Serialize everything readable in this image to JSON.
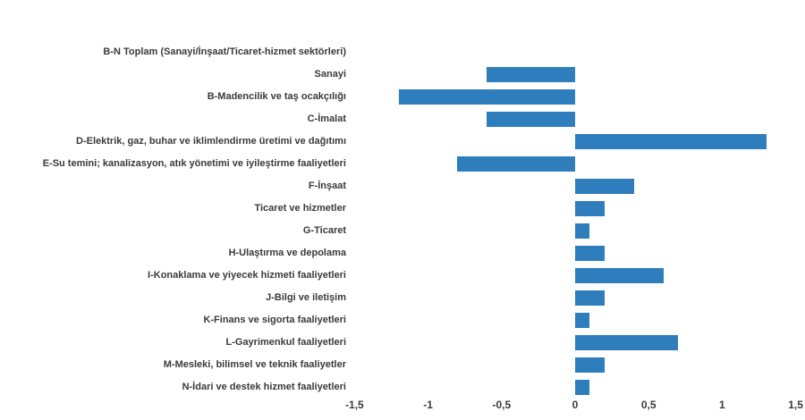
{
  "chart_data": {
    "type": "bar",
    "orientation": "horizontal",
    "title": "",
    "xlabel": "",
    "ylabel": "",
    "grid": false,
    "legend": null,
    "xlim": [
      -1.5,
      1.5
    ],
    "x_tick_values": [
      -1.5,
      -1,
      -0.5,
      0,
      0.5,
      1,
      1.5
    ],
    "x_tick_labels": [
      "-1,5",
      "-1",
      "-0,5",
      "0",
      "0,5",
      "1",
      "1,5"
    ],
    "categories": [
      "B-N Toplam (Sanayi/İnşaat/Ticaret-hizmet sektörleri)",
      "Sanayi",
      "B-Madencilik ve taş ocakçılığı",
      "C-İmalat",
      "D-Elektrik, gaz, buhar ve iklimlendirme üretimi ve dağıtımı",
      "E-Su temini; kanalizasyon, atık yönetimi ve iyileştirme faaliyetleri",
      "F-İnşaat",
      "Ticaret ve hizmetler",
      "G-Ticaret",
      "H-Ulaştırma ve depolama",
      "I-Konaklama ve yiyecek hizmeti faaliyetleri",
      "J-Bilgi ve iletişim",
      "K-Finans ve sigorta faaliyetleri",
      "L-Gayrimenkul faaliyetleri",
      "M-Mesleki, bilimsel ve teknik faaliyetler",
      "N-İdari ve destek hizmet faaliyetleri"
    ],
    "values": [
      0.0,
      -0.6,
      -1.2,
      -0.6,
      1.3,
      -0.8,
      0.4,
      0.2,
      0.1,
      0.2,
      0.6,
      0.2,
      0.1,
      0.7,
      0.2,
      0.1
    ],
    "colors": {
      "bar": "#2e7ebd",
      "text": "#3a3a3a",
      "background": "#ffffff"
    }
  }
}
